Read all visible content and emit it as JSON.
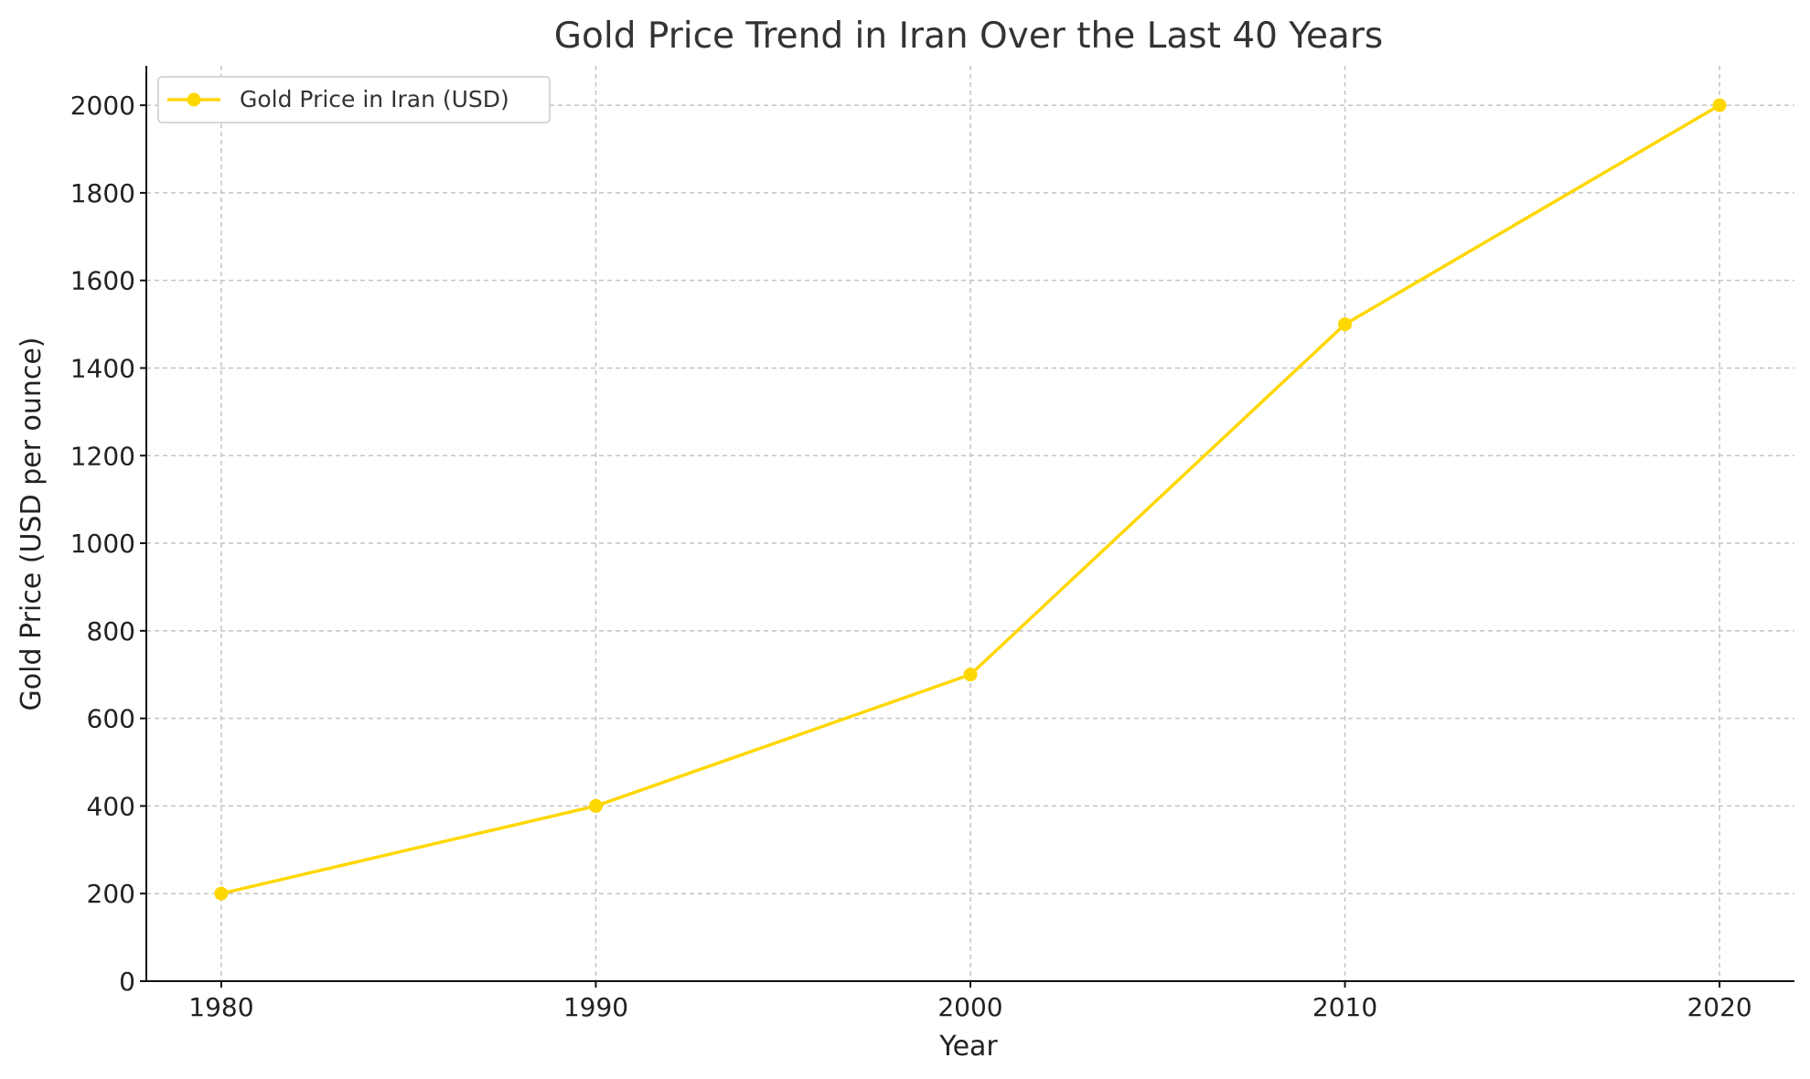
{
  "chart_data": {
    "type": "line",
    "title": "Gold Price Trend in Iran Over the Last 40 Years",
    "xlabel": "Year",
    "ylabel": "Gold Price (USD per ounce)",
    "x": [
      1980,
      1990,
      2000,
      2010,
      2020
    ],
    "x_ticks": [
      "1980",
      "1990",
      "2000",
      "2010",
      "2020"
    ],
    "y_ticks": [
      "0",
      "200",
      "400",
      "600",
      "800",
      "1000",
      "1200",
      "1400",
      "1600",
      "1800",
      "2000"
    ],
    "xlim": [
      1978,
      2022
    ],
    "ylim": [
      0,
      2090
    ],
    "grid": true,
    "legend_position": "top-left",
    "series": [
      {
        "name": "Gold Price in Iran (USD)",
        "values": [
          200,
          400,
          700,
          1500,
          2000
        ],
        "color": "#FFD700",
        "marker": "circle"
      }
    ]
  }
}
